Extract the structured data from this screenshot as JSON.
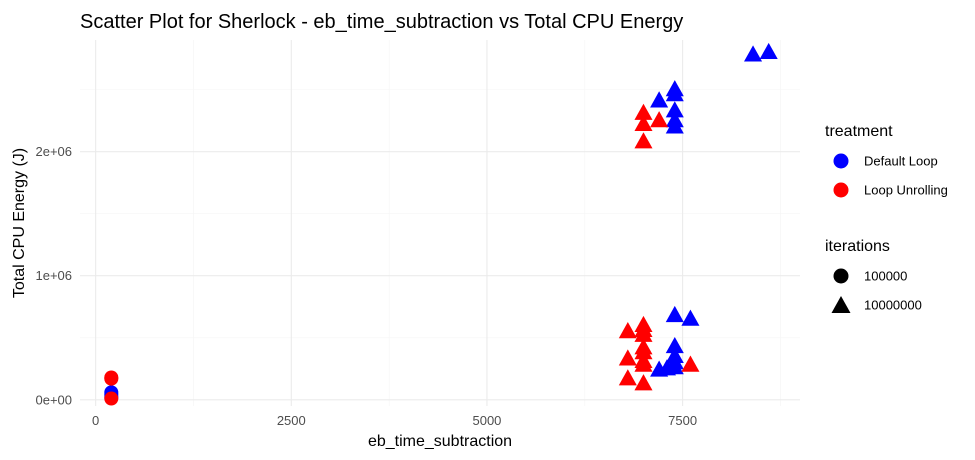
{
  "chart_data": {
    "type": "scatter",
    "title": "Scatter Plot for Sherlock  - eb_time_subtraction vs Total CPU Energy",
    "xlabel": "eb_time_subtraction",
    "ylabel": "Total CPU Energy (J)",
    "xlim": [
      -200,
      9000
    ],
    "ylim": [
      -50000,
      2900000
    ],
    "x_ticks": [
      0,
      2500,
      5000,
      7500
    ],
    "x_tick_labels": [
      "0",
      "2500",
      "5000",
      "7500"
    ],
    "y_ticks": [
      0,
      1000000,
      2000000
    ],
    "y_tick_labels": [
      "0e+00",
      "1e+06",
      "2e+06"
    ],
    "grid": true,
    "legend_position": "right",
    "legends": [
      {
        "title": "treatment",
        "entries": [
          {
            "label": "Default Loop",
            "color": "#0000ff",
            "shape": "circle"
          },
          {
            "label": "Loop Unrolling",
            "color": "#ff0000",
            "shape": "circle"
          }
        ]
      },
      {
        "title": "iterations",
        "entries": [
          {
            "label": "100000",
            "color": "#000000",
            "shape": "circle"
          },
          {
            "label": "10000000",
            "color": "#000000",
            "shape": "triangle"
          }
        ]
      }
    ],
    "series": [
      {
        "treatment": "Default Loop",
        "iterations": "100000",
        "color": "#0000ff",
        "shape": "circle",
        "points": [
          [
            200,
            20000
          ],
          [
            200,
            40000
          ],
          [
            200,
            60000
          ]
        ]
      },
      {
        "treatment": "Loop Unrolling",
        "iterations": "100000",
        "color": "#ff0000",
        "shape": "circle",
        "points": [
          [
            200,
            10000
          ],
          [
            200,
            170000
          ],
          [
            200,
            180000
          ]
        ]
      },
      {
        "treatment": "Default Loop",
        "iterations": "10000000",
        "color": "#0000ff",
        "shape": "triangle",
        "points": [
          [
            8400,
            2780000
          ],
          [
            8600,
            2800000
          ],
          [
            7200,
            2410000
          ],
          [
            7400,
            2500000
          ],
          [
            7400,
            2460000
          ],
          [
            7400,
            2330000
          ],
          [
            7400,
            2250000
          ],
          [
            7400,
            2200000
          ],
          [
            7400,
            680000
          ],
          [
            7600,
            650000
          ],
          [
            7400,
            430000
          ],
          [
            7400,
            350000
          ],
          [
            7400,
            300000
          ],
          [
            7400,
            260000
          ],
          [
            7200,
            240000
          ],
          [
            7300,
            250000
          ]
        ]
      },
      {
        "treatment": "Loop Unrolling",
        "iterations": "10000000",
        "color": "#ff0000",
        "shape": "triangle",
        "points": [
          [
            7000,
            2310000
          ],
          [
            7000,
            2220000
          ],
          [
            7000,
            2080000
          ],
          [
            7200,
            2250000
          ],
          [
            7000,
            600000
          ],
          [
            7000,
            560000
          ],
          [
            6800,
            550000
          ],
          [
            7000,
            520000
          ],
          [
            7000,
            420000
          ],
          [
            7000,
            380000
          ],
          [
            6800,
            330000
          ],
          [
            7000,
            310000
          ],
          [
            7000,
            280000
          ],
          [
            7600,
            280000
          ],
          [
            6800,
            170000
          ],
          [
            7000,
            130000
          ]
        ]
      }
    ]
  }
}
